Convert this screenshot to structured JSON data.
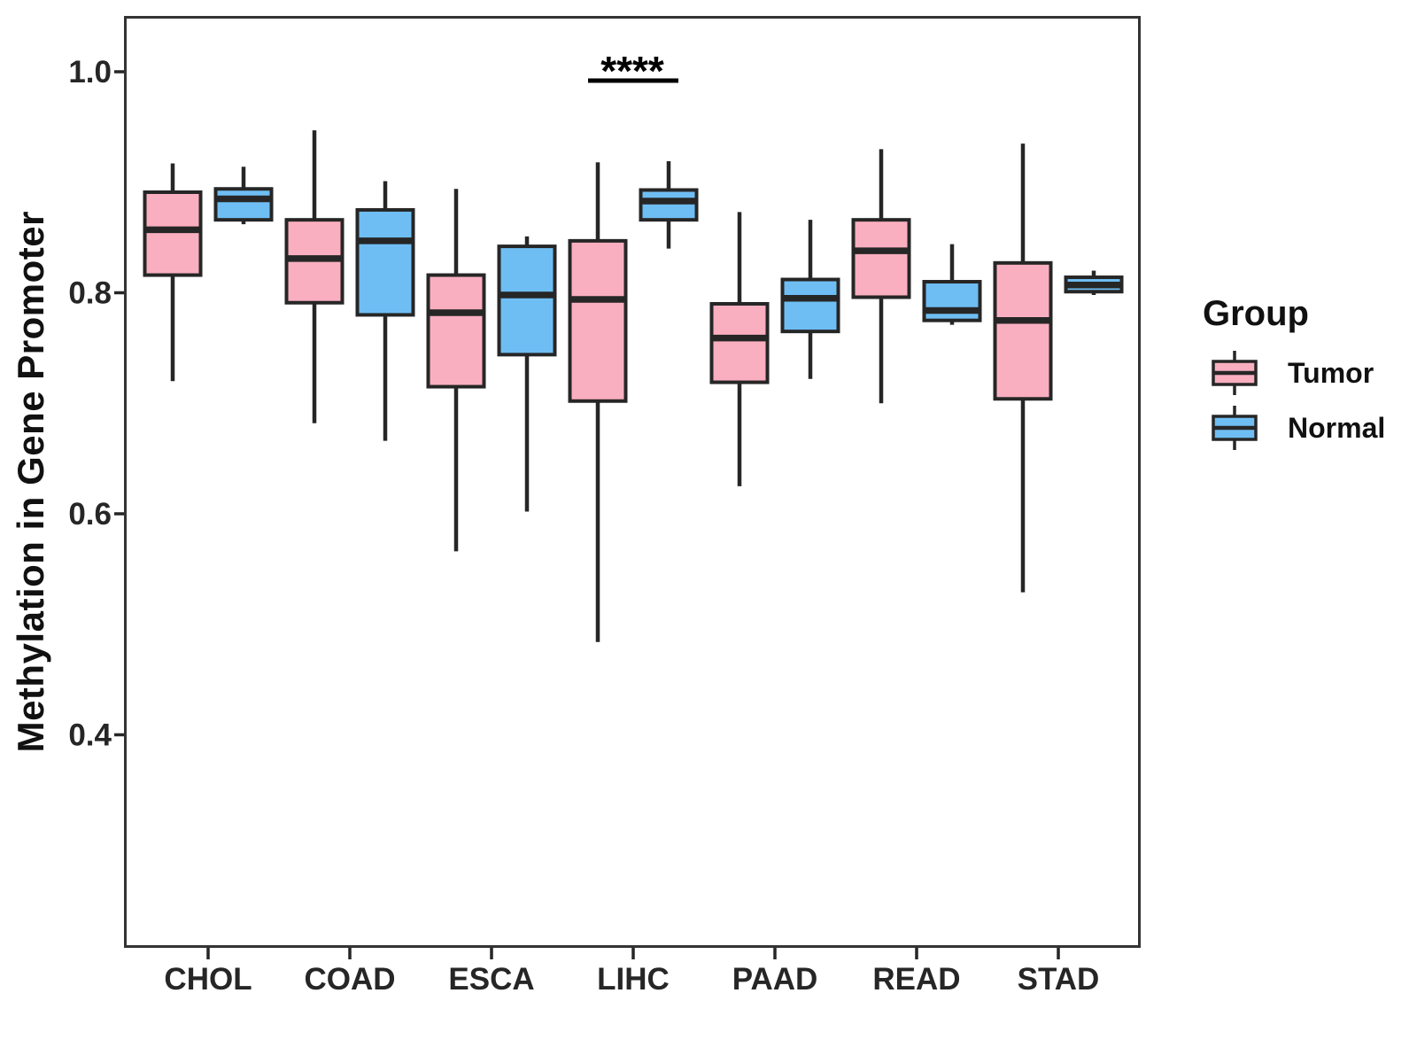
{
  "chart_data": {
    "type": "boxplot",
    "title": "",
    "xlabel": "",
    "ylabel": "Methylation in Gene Promoter",
    "categories": [
      "CHOL",
      "COAD",
      "ESCA",
      "LIHC",
      "PAAD",
      "READ",
      "STAD"
    ],
    "groups": [
      {
        "name": "Tumor",
        "color": "#FAAFC0"
      },
      {
        "name": "Normal",
        "color": "#6FBEF3"
      }
    ],
    "axis": {
      "y_ticks": [
        1.0,
        0.8,
        0.6,
        0.4
      ],
      "y_tick_labels": [
        "1.0",
        "0.8",
        "0.6",
        "0.4"
      ],
      "y_range_shown": [
        0.21,
        1.05
      ],
      "grid": "off",
      "legend_position": "right"
    },
    "series": [
      {
        "name": "Tumor",
        "boxes": [
          {
            "category": "CHOL",
            "min": 0.72,
            "q1": 0.816,
            "median": 0.857,
            "q3": 0.891,
            "max": 0.917
          },
          {
            "category": "COAD",
            "min": 0.682,
            "q1": 0.791,
            "median": 0.831,
            "q3": 0.866,
            "max": 0.947
          },
          {
            "category": "ESCA",
            "min": 0.566,
            "q1": 0.715,
            "median": 0.782,
            "q3": 0.816,
            "max": 0.894
          },
          {
            "category": "LIHC",
            "min": 0.484,
            "q1": 0.702,
            "median": 0.794,
            "q3": 0.847,
            "max": 0.918
          },
          {
            "category": "PAAD",
            "min": 0.625,
            "q1": 0.719,
            "median": 0.759,
            "q3": 0.79,
            "max": 0.873
          },
          {
            "category": "READ",
            "min": 0.7,
            "q1": 0.796,
            "median": 0.838,
            "q3": 0.866,
            "max": 0.93
          },
          {
            "category": "STAD",
            "min": 0.529,
            "q1": 0.704,
            "median": 0.775,
            "q3": 0.827,
            "max": 0.935
          }
        ]
      },
      {
        "name": "Normal",
        "boxes": [
          {
            "category": "CHOL",
            "min": 0.862,
            "q1": 0.866,
            "median": 0.885,
            "q3": 0.894,
            "max": 0.914
          },
          {
            "category": "COAD",
            "min": 0.666,
            "q1": 0.78,
            "median": 0.847,
            "q3": 0.875,
            "max": 0.901
          },
          {
            "category": "ESCA",
            "min": 0.602,
            "q1": 0.744,
            "median": 0.798,
            "q3": 0.842,
            "max": 0.851
          },
          {
            "category": "LIHC",
            "min": 0.84,
            "q1": 0.866,
            "median": 0.883,
            "q3": 0.893,
            "max": 0.919
          },
          {
            "category": "PAAD",
            "min": 0.722,
            "q1": 0.765,
            "median": 0.795,
            "q3": 0.812,
            "max": 0.866
          },
          {
            "category": "READ",
            "min": 0.771,
            "q1": 0.775,
            "median": 0.784,
            "q3": 0.81,
            "max": 0.844
          },
          {
            "category": "STAD",
            "min": 0.798,
            "q1": 0.801,
            "median": 0.807,
            "q3": 0.814,
            "max": 0.82
          }
        ]
      }
    ],
    "annotation": {
      "label": "****",
      "category": "LIHC"
    },
    "legend": {
      "title": "Group",
      "entries": [
        "Tumor",
        "Normal"
      ]
    },
    "colors": {
      "box_border": "#262626",
      "axis_text": "#262626",
      "panel_border": "#333333",
      "annotation": "#000000",
      "background": "#ffffff"
    }
  }
}
